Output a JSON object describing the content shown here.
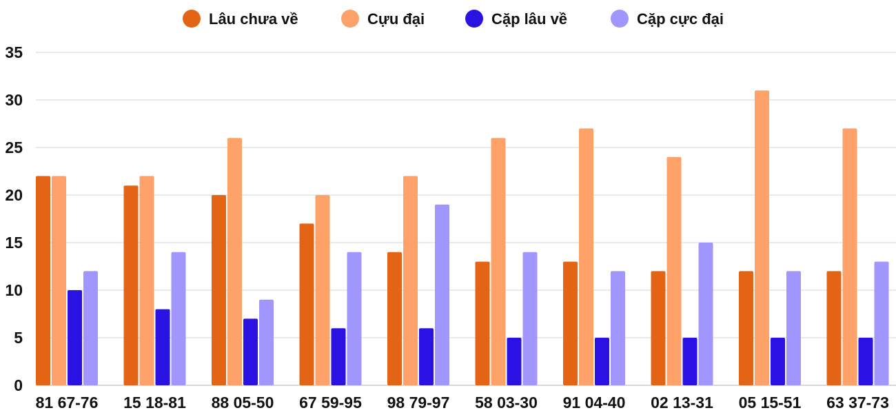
{
  "chart_data": {
    "type": "bar",
    "title": "",
    "xlabel": "",
    "ylabel": "",
    "ylim": [
      0,
      35
    ],
    "yticks": [
      0,
      5,
      10,
      15,
      20,
      25,
      30,
      35
    ],
    "grid": true,
    "legend_position": "top",
    "categories": [
      "81 67-76",
      "15 18-81",
      "88 05-50",
      "67 59-95",
      "98 79-97",
      "58 03-30",
      "91 04-40",
      "02 13-31",
      "05 15-51",
      "63 37-73"
    ],
    "series": [
      {
        "name": "Lâu chưa về",
        "color": "#e36414",
        "values": [
          22,
          21,
          20,
          17,
          14,
          13,
          13,
          12,
          12,
          12
        ]
      },
      {
        "name": "Cựu đại",
        "color": "#fea26a",
        "values": [
          22,
          22,
          26,
          20,
          22,
          26,
          27,
          24,
          31,
          27
        ]
      },
      {
        "name": "Cặp lâu về",
        "color": "#2a12e2",
        "values": [
          10,
          8,
          7,
          6,
          6,
          5,
          5,
          5,
          5,
          5
        ]
      },
      {
        "name": "Cặp cực đại",
        "color": "#a096fe",
        "values": [
          12,
          14,
          9,
          14,
          19,
          14,
          12,
          15,
          12,
          13
        ]
      }
    ]
  }
}
